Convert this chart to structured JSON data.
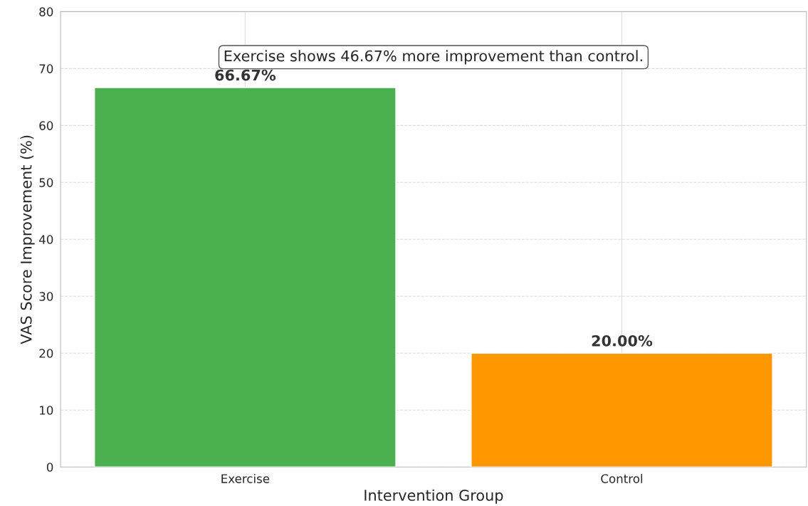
{
  "chart_data": {
    "type": "bar",
    "xlabel": "Intervention Group",
    "ylabel": "VAS Score Improvement (%)",
    "categories": [
      "Exercise",
      "Control"
    ],
    "values": [
      66.67,
      20.0
    ],
    "colors": [
      "#4caf50",
      "#ff9800"
    ],
    "value_labels": [
      "66.67%",
      "20.00%"
    ],
    "ylim": [
      0,
      80
    ],
    "yticks": [
      0,
      10,
      20,
      30,
      40,
      50,
      60,
      70,
      80
    ],
    "grid": true,
    "annotations": [
      "Exercise shows 46.67% more improvement than control."
    ]
  }
}
